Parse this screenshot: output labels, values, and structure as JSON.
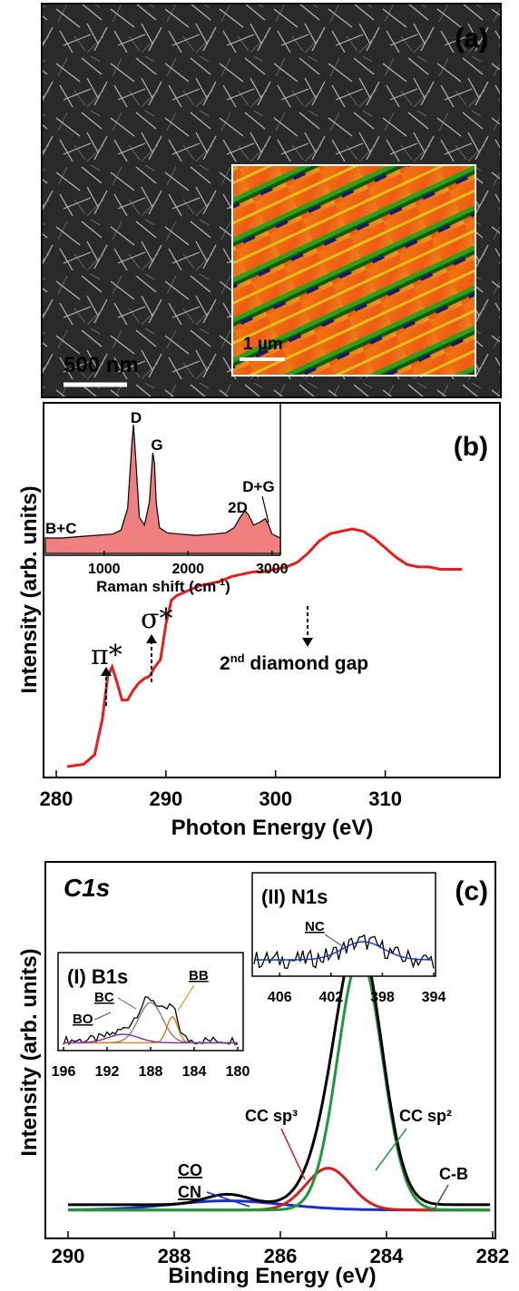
{
  "panel_a": {
    "label": "(a)",
    "scale_bar": "500 nm",
    "inset_scale_bar": "1 µm"
  },
  "panel_b": {
    "label": "(b)",
    "ylabel": "Intensity (arb. units)",
    "xlabel": "Photon Energy (eV)",
    "annotation_pi": "π*",
    "annotation_sigma": "σ*",
    "annotation_gap_base": "2",
    "annotation_gap_sup": "nd",
    "annotation_gap_rest": " diamond gap",
    "inset_xlabel_base": "Raman shift (cm",
    "inset_xlabel_sup": "-1",
    "inset_xlabel_end": ")",
    "inset_peaks": [
      "D",
      "G",
      "2D",
      "D+G",
      "B+C"
    ]
  },
  "panel_c": {
    "label": "(c)",
    "title": "C1s",
    "ylabel": "Intensity (arb. units)",
    "xlabel": "Binding Energy (eV)",
    "component_labels": [
      "CO",
      "CN",
      "CC sp³",
      "CC sp²",
      "C-B"
    ],
    "inset1_title": "(I) B1s",
    "inset1_labels": [
      "BC",
      "BB",
      "BO"
    ],
    "inset2_title": "(II) N1s",
    "inset2_labels": [
      "NC"
    ]
  },
  "chart_data": [
    {
      "type": "line",
      "panel": "b",
      "xlabel": "Photon Energy (eV)",
      "ylabel": "Intensity (arb. units)",
      "xlim": [
        280,
        318
      ],
      "xticks": [
        280,
        290,
        300,
        310
      ],
      "color": "#e81c1c",
      "x": [
        281,
        282.5,
        283.5,
        284.2,
        284.7,
        285.1,
        285.5,
        286,
        286.5,
        287,
        287.5,
        288,
        288.5,
        289,
        289.5,
        290,
        290.5,
        291,
        291.5,
        292,
        293,
        294,
        295,
        296,
        297,
        298,
        299,
        300,
        301,
        302,
        303,
        304,
        305,
        306,
        307,
        308,
        309,
        310,
        311,
        312,
        313,
        314,
        315,
        316,
        317
      ],
      "y": [
        0.0,
        0.01,
        0.05,
        0.2,
        0.38,
        0.42,
        0.36,
        0.28,
        0.28,
        0.32,
        0.35,
        0.37,
        0.38,
        0.42,
        0.45,
        0.6,
        0.7,
        0.72,
        0.73,
        0.74,
        0.76,
        0.77,
        0.78,
        0.8,
        0.81,
        0.82,
        0.82,
        0.83,
        0.84,
        0.86,
        0.9,
        0.95,
        0.98,
        0.99,
        1.0,
        0.99,
        0.96,
        0.92,
        0.88,
        0.85,
        0.84,
        0.84,
        0.83,
        0.83,
        0.83
      ]
    },
    {
      "type": "area",
      "panel": "b-inset",
      "xlabel": "Raman shift (cm-1)",
      "xlim": [
        300,
        3100
      ],
      "xticks": [
        1000,
        2000,
        3000
      ],
      "x": [
        300,
        500,
        700,
        900,
        1100,
        1200,
        1280,
        1330,
        1350,
        1370,
        1420,
        1480,
        1540,
        1580,
        1600,
        1620,
        1660,
        1750,
        1900,
        2100,
        2300,
        2450,
        2550,
        2620,
        2680,
        2720,
        2780,
        2850,
        2920,
        2960,
        3000,
        3100
      ],
      "y": [
        0.12,
        0.12,
        0.13,
        0.14,
        0.15,
        0.18,
        0.35,
        0.85,
        1.0,
        0.8,
        0.28,
        0.22,
        0.4,
        0.78,
        0.7,
        0.4,
        0.2,
        0.16,
        0.15,
        0.14,
        0.15,
        0.16,
        0.2,
        0.28,
        0.33,
        0.3,
        0.22,
        0.24,
        0.27,
        0.22,
        0.15,
        0.12
      ],
      "peaks": [
        "D",
        "G",
        "2D",
        "D+G",
        "B+C"
      ]
    },
    {
      "type": "line",
      "panel": "c",
      "title": "C1s",
      "xlabel": "Binding Energy (eV)",
      "ylabel": "Intensity (arb. units)",
      "xlim": [
        290,
        282
      ],
      "xticks": [
        290,
        288,
        286,
        284,
        282
      ],
      "series": [
        {
          "name": "envelope",
          "color": "#000000",
          "center": 284.5,
          "amp": 1.0
        },
        {
          "name": "CC sp2",
          "color": "#1a9a3a",
          "center": 284.5,
          "amp": 0.97
        },
        {
          "name": "CC sp3",
          "color": "#d62020",
          "center": 285.1,
          "amp": 0.16
        },
        {
          "name": "CO/CN",
          "color": "#1a2fc8",
          "center": 287.0,
          "amp": 0.04
        }
      ]
    },
    {
      "type": "line",
      "panel": "c-inset-I",
      "title": "(I) B1s",
      "xlim": [
        196,
        180
      ],
      "xticks": [
        196,
        192,
        188,
        184,
        180
      ],
      "series": [
        {
          "name": "BC",
          "color": "#808080",
          "center": 188.0
        },
        {
          "name": "BB",
          "color": "#e07b1a",
          "center": 186.0
        },
        {
          "name": "BO",
          "color": "#7a2ca0",
          "center": 190.5
        }
      ]
    },
    {
      "type": "line",
      "panel": "c-inset-II",
      "title": "(II) N1s",
      "xlim": [
        408,
        394
      ],
      "xticks": [
        406,
        402,
        398,
        394
      ],
      "series": [
        {
          "name": "NC",
          "color": "#1a2fc8",
          "center": 399.5
        }
      ]
    }
  ]
}
